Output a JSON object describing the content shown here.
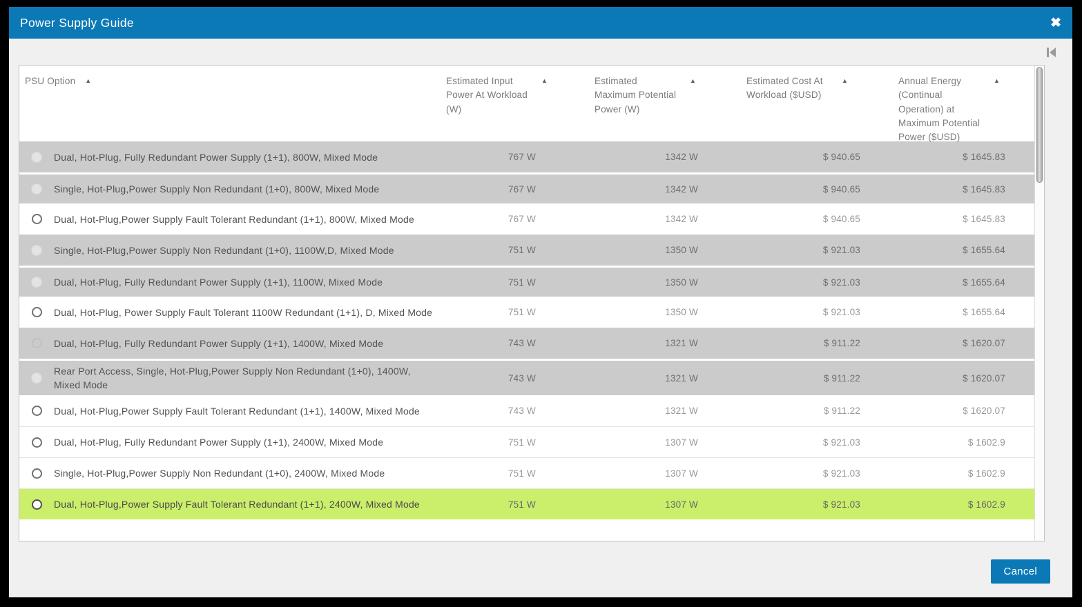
{
  "dialog": {
    "title": "Power Supply Guide"
  },
  "icons": {
    "close": "✖",
    "sort_asc": "▲",
    "collapse_panel": "bar-with-left-triangle"
  },
  "colors": {
    "titlebar_blue": "#0c79b7",
    "button_blue": "#0c79b7",
    "dialog_bg": "#f0f0f0",
    "row_disabled_bg": "#cbcbcb",
    "row_selected_bg": "#cbee6b",
    "frame_black": "#000000"
  },
  "table": {
    "columns": [
      {
        "label": "PSU Option",
        "sort": "asc"
      },
      {
        "label": "Estimated Input Power At Workload (W)",
        "sort": "asc"
      },
      {
        "label": "Estimated Maximum Potential Power (W)",
        "sort": "asc"
      },
      {
        "label": "Estimated Cost At Workload ($USD)",
        "sort": "asc"
      },
      {
        "label": "Annual Energy (Continual Operation) at Maximum Potential Power ($USD)",
        "sort": "asc"
      }
    ],
    "rows": [
      {
        "state": "disabled",
        "option": "Dual, Hot-Plug, Fully Redundant Power Supply (1+1), 800W, Mixed Mode",
        "input_power": "767 W",
        "max_power": "1342 W",
        "cost": "$ 940.65",
        "annual_energy": "$ 1645.83"
      },
      {
        "state": "disabled",
        "option": "Single, Hot-Plug,Power Supply Non Redundant (1+0), 800W, Mixed Mode",
        "input_power": "767 W",
        "max_power": "1342 W",
        "cost": "$ 940.65",
        "annual_energy": "$ 1645.83"
      },
      {
        "state": "available",
        "option": "Dual, Hot-Plug,Power Supply Fault Tolerant Redundant (1+1), 800W, Mixed Mode",
        "input_power": "767 W",
        "max_power": "1342 W",
        "cost": "$ 940.65",
        "annual_energy": "$ 1645.83"
      },
      {
        "state": "disabled",
        "option": "Single, Hot-Plug,Power Supply Non Redundant (1+0), 1100W,D, Mixed Mode",
        "input_power": "751 W",
        "max_power": "1350 W",
        "cost": "$ 921.03",
        "annual_energy": "$ 1655.64"
      },
      {
        "state": "disabled",
        "option": "Dual, Hot-Plug, Fully Redundant Power Supply (1+1), 1100W, Mixed Mode",
        "input_power": "751 W",
        "max_power": "1350 W",
        "cost": "$ 921.03",
        "annual_energy": "$ 1655.64"
      },
      {
        "state": "available",
        "option": "Dual, Hot-Plug, Power Supply Fault Tolerant 1100W Redundant (1+1), D, Mixed Mode",
        "input_power": "751 W",
        "max_power": "1350 W",
        "cost": "$ 921.03",
        "annual_energy": "$ 1655.64"
      },
      {
        "state": "disabled_outline",
        "option": "Dual, Hot-Plug, Fully Redundant Power Supply (1+1), 1400W, Mixed Mode",
        "input_power": "743 W",
        "max_power": "1321 W",
        "cost": "$ 911.22",
        "annual_energy": "$ 1620.07"
      },
      {
        "state": "disabled",
        "option": "Rear Port Access, Single, Hot-Plug,Power Supply Non Redundant (1+0), 1400W, Mixed Mode",
        "input_power": "743 W",
        "max_power": "1321 W",
        "cost": "$ 911.22",
        "annual_energy": "$ 1620.07"
      },
      {
        "state": "available",
        "option": "Dual, Hot-Plug,Power Supply Fault Tolerant Redundant (1+1), 1400W, Mixed Mode",
        "input_power": "743 W",
        "max_power": "1321 W",
        "cost": "$ 911.22",
        "annual_energy": "$ 1620.07"
      },
      {
        "state": "available",
        "option": "Dual, Hot-Plug, Fully Redundant Power Supply (1+1), 2400W, Mixed Mode",
        "input_power": "751 W",
        "max_power": "1307 W",
        "cost": "$ 921.03",
        "annual_energy": "$ 1602.9"
      },
      {
        "state": "available",
        "option": "Single, Hot-Plug,Power Supply Non Redundant (1+0), 2400W, Mixed Mode",
        "input_power": "751 W",
        "max_power": "1307 W",
        "cost": "$ 921.03",
        "annual_energy": "$ 1602.9"
      },
      {
        "state": "selected",
        "option": "Dual, Hot-Plug,Power Supply Fault Tolerant Redundant (1+1), 2400W, Mixed Mode",
        "input_power": "751 W",
        "max_power": "1307 W",
        "cost": "$ 921.03",
        "annual_energy": "$ 1602.9"
      }
    ]
  },
  "footer": {
    "cancel_label": "Cancel"
  }
}
